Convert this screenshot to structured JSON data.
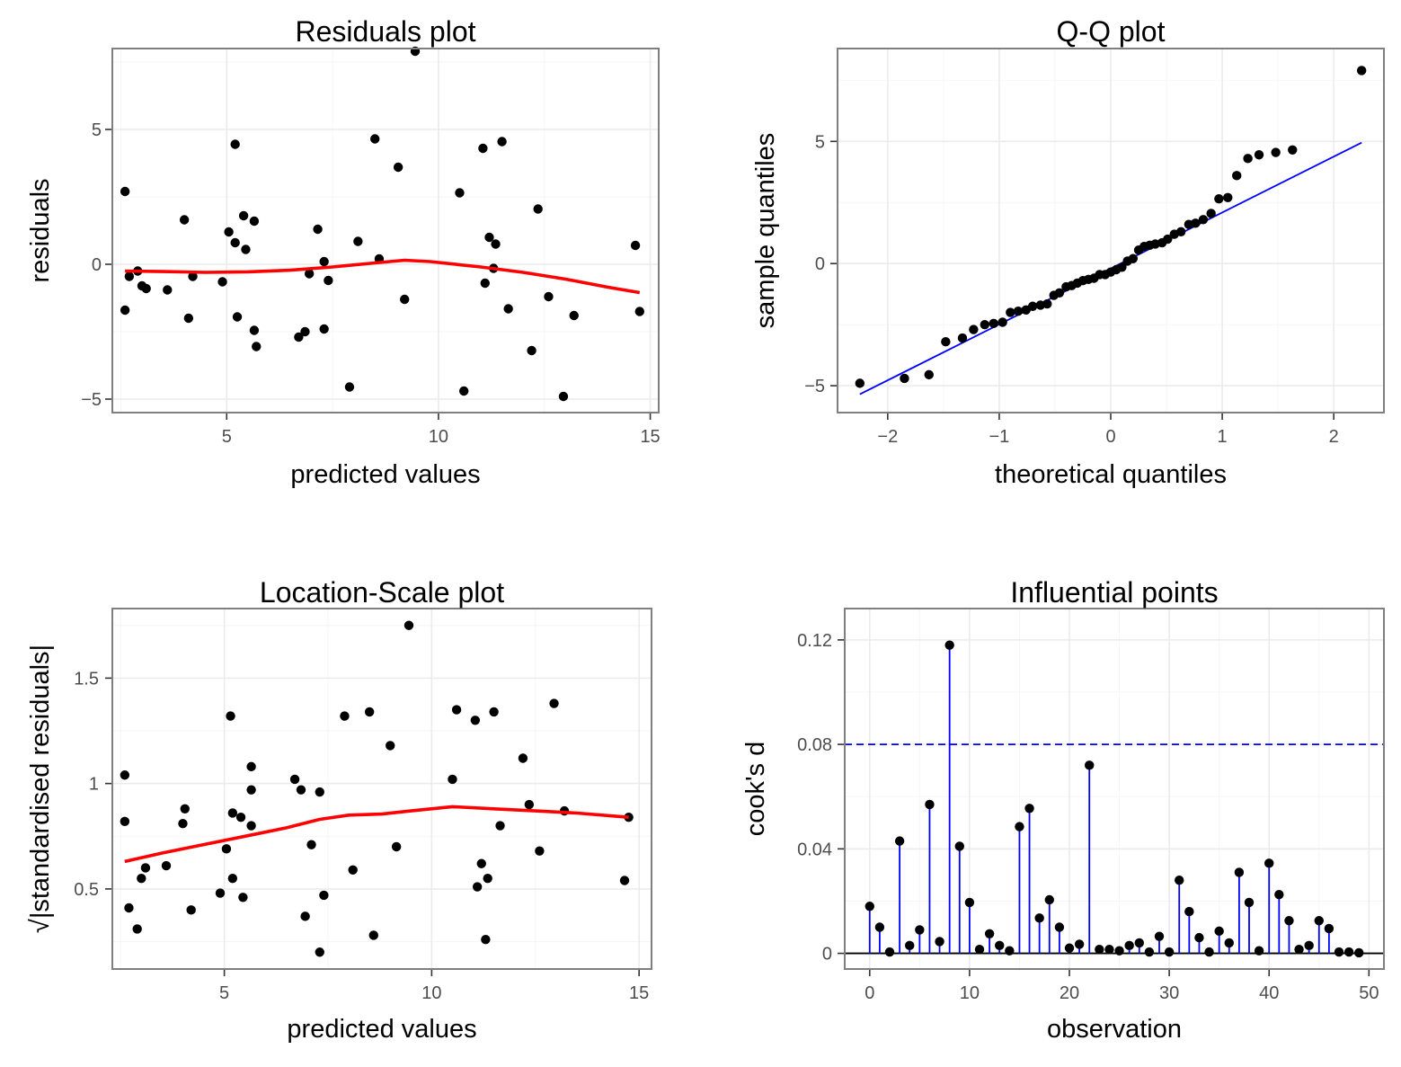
{
  "colors": {
    "points": "#000000",
    "smooth": "#ff0000",
    "reference": "#0000ff",
    "grid": "#ebebeb",
    "frame": "#7f7f7f"
  },
  "chart_data": [
    {
      "id": "residuals",
      "type": "scatter",
      "title": "Residuals plot",
      "xlabel": "predicted values",
      "ylabel": "residuals",
      "xlim": [
        2.3,
        15.2
      ],
      "ylim": [
        -5.5,
        8.0
      ],
      "xticks": [
        5,
        10,
        15
      ],
      "xtick_labels": [
        "5",
        "10",
        "15"
      ],
      "yticks": [
        -5,
        0,
        5
      ],
      "ytick_labels": [
        "−5",
        "0",
        "5"
      ],
      "grid": true,
      "points": [
        [
          2.6,
          -1.7
        ],
        [
          2.6,
          2.7
        ],
        [
          2.7,
          -0.45
        ],
        [
          2.9,
          -0.25
        ],
        [
          3.0,
          -0.8
        ],
        [
          3.1,
          -0.9
        ],
        [
          3.6,
          -0.95
        ],
        [
          4.0,
          1.65
        ],
        [
          4.1,
          -2.0
        ],
        [
          4.2,
          -0.45
        ],
        [
          4.9,
          -0.65
        ],
        [
          5.05,
          1.2
        ],
        [
          5.2,
          4.45
        ],
        [
          5.2,
          0.8
        ],
        [
          5.25,
          -1.95
        ],
        [
          5.4,
          1.8
        ],
        [
          5.45,
          0.55
        ],
        [
          5.65,
          1.6
        ],
        [
          5.65,
          -2.45
        ],
        [
          5.7,
          -3.05
        ],
        [
          6.7,
          -2.7
        ],
        [
          6.85,
          -2.5
        ],
        [
          6.95,
          -0.35
        ],
        [
          7.15,
          1.3
        ],
        [
          7.3,
          0.1
        ],
        [
          7.3,
          -2.4
        ],
        [
          7.4,
          -0.6
        ],
        [
          7.9,
          -4.55
        ],
        [
          8.1,
          0.85
        ],
        [
          8.5,
          4.65
        ],
        [
          8.6,
          0.2
        ],
        [
          9.05,
          3.6
        ],
        [
          9.2,
          -1.3
        ],
        [
          9.45,
          7.9
        ],
        [
          10.5,
          2.65
        ],
        [
          10.6,
          -4.7
        ],
        [
          11.05,
          4.3
        ],
        [
          11.1,
          -0.7
        ],
        [
          11.2,
          1.0
        ],
        [
          11.3,
          -0.15
        ],
        [
          11.35,
          0.75
        ],
        [
          11.5,
          4.55
        ],
        [
          11.65,
          -1.65
        ],
        [
          12.2,
          -3.2
        ],
        [
          12.35,
          2.05
        ],
        [
          12.6,
          -1.2
        ],
        [
          12.95,
          -4.9
        ],
        [
          13.2,
          -1.9
        ],
        [
          14.65,
          0.7
        ],
        [
          14.75,
          -1.75
        ]
      ],
      "smooth": [
        [
          2.6,
          -0.25
        ],
        [
          3.5,
          -0.27
        ],
        [
          4.5,
          -0.3
        ],
        [
          5.5,
          -0.28
        ],
        [
          6.5,
          -0.22
        ],
        [
          7.5,
          -0.1
        ],
        [
          8.5,
          0.05
        ],
        [
          9.2,
          0.15
        ],
        [
          9.8,
          0.1
        ],
        [
          11.0,
          -0.1
        ],
        [
          12.0,
          -0.3
        ],
        [
          13.0,
          -0.55
        ],
        [
          14.0,
          -0.85
        ],
        [
          14.75,
          -1.05
        ]
      ]
    },
    {
      "id": "qq",
      "type": "scatter",
      "title": "Q-Q plot",
      "xlabel": "theoretical quantiles",
      "ylabel": "sample quantiles",
      "xlim": [
        -2.45,
        2.45
      ],
      "ylim": [
        -6.1,
        8.8
      ],
      "xticks": [
        -2,
        -1,
        0,
        1,
        2
      ],
      "xtick_labels": [
        "−2",
        "−1",
        "0",
        "1",
        "2"
      ],
      "yticks": [
        -5,
        0,
        5
      ],
      "ytick_labels": [
        "−5",
        "0",
        "5"
      ],
      "grid": true,
      "points": [
        [
          -2.25,
          -4.9
        ],
        [
          -1.85,
          -4.7
        ],
        [
          -1.63,
          -4.55
        ],
        [
          -1.48,
          -3.2
        ],
        [
          -1.33,
          -3.05
        ],
        [
          -1.23,
          -2.7
        ],
        [
          -1.13,
          -2.5
        ],
        [
          -1.05,
          -2.45
        ],
        [
          -0.97,
          -2.4
        ],
        [
          -0.9,
          -2.0
        ],
        [
          -0.83,
          -1.95
        ],
        [
          -0.76,
          -1.9
        ],
        [
          -0.7,
          -1.75
        ],
        [
          -0.63,
          -1.7
        ],
        [
          -0.57,
          -1.65
        ],
        [
          -0.51,
          -1.3
        ],
        [
          -0.46,
          -1.2
        ],
        [
          -0.4,
          -0.95
        ],
        [
          -0.35,
          -0.9
        ],
        [
          -0.3,
          -0.8
        ],
        [
          -0.25,
          -0.7
        ],
        [
          -0.2,
          -0.65
        ],
        [
          -0.15,
          -0.6
        ],
        [
          -0.1,
          -0.45
        ],
        [
          -0.05,
          -0.45
        ],
        [
          0.0,
          -0.35
        ],
        [
          0.05,
          -0.25
        ],
        [
          0.1,
          -0.15
        ],
        [
          0.15,
          0.1
        ],
        [
          0.2,
          0.2
        ],
        [
          0.25,
          0.55
        ],
        [
          0.3,
          0.7
        ],
        [
          0.35,
          0.75
        ],
        [
          0.4,
          0.8
        ],
        [
          0.46,
          0.85
        ],
        [
          0.51,
          1.0
        ],
        [
          0.57,
          1.2
        ],
        [
          0.63,
          1.3
        ],
        [
          0.7,
          1.6
        ],
        [
          0.76,
          1.65
        ],
        [
          0.83,
          1.8
        ],
        [
          0.9,
          2.05
        ],
        [
          0.97,
          2.65
        ],
        [
          1.05,
          2.7
        ],
        [
          1.13,
          3.6
        ],
        [
          1.23,
          4.3
        ],
        [
          1.33,
          4.45
        ],
        [
          1.48,
          4.55
        ],
        [
          1.63,
          4.65
        ],
        [
          2.25,
          7.9
        ]
      ],
      "reference_line": [
        [
          -2.25,
          -5.35
        ],
        [
          2.25,
          4.95
        ]
      ]
    },
    {
      "id": "location_scale",
      "type": "scatter",
      "title": "Location-Scale plot",
      "xlabel": "predicted values",
      "ylabel": "√|standardised residuals|",
      "xlim": [
        2.3,
        15.3
      ],
      "ylim": [
        0.12,
        1.83
      ],
      "xticks": [
        5,
        10,
        15
      ],
      "xtick_labels": [
        "5",
        "10",
        "15"
      ],
      "yticks": [
        0.5,
        1.0,
        1.5
      ],
      "ytick_labels": [
        "0.5",
        "1",
        "1.5"
      ],
      "grid": true,
      "points": [
        [
          2.6,
          0.82
        ],
        [
          2.6,
          1.04
        ],
        [
          2.7,
          0.41
        ],
        [
          2.9,
          0.31
        ],
        [
          3.0,
          0.55
        ],
        [
          3.1,
          0.6
        ],
        [
          3.6,
          0.61
        ],
        [
          4.0,
          0.81
        ],
        [
          4.05,
          0.88
        ],
        [
          4.2,
          0.4
        ],
        [
          4.9,
          0.48
        ],
        [
          5.05,
          0.69
        ],
        [
          5.15,
          1.32
        ],
        [
          5.2,
          0.86
        ],
        [
          5.2,
          0.55
        ],
        [
          5.4,
          0.84
        ],
        [
          5.45,
          0.46
        ],
        [
          5.65,
          1.08
        ],
        [
          5.65,
          0.97
        ],
        [
          5.65,
          0.8
        ],
        [
          6.7,
          1.02
        ],
        [
          6.85,
          0.97
        ],
        [
          6.95,
          0.37
        ],
        [
          7.1,
          0.71
        ],
        [
          7.3,
          0.2
        ],
        [
          7.3,
          0.96
        ],
        [
          7.4,
          0.47
        ],
        [
          7.9,
          1.32
        ],
        [
          8.1,
          0.59
        ],
        [
          8.5,
          1.34
        ],
        [
          8.6,
          0.28
        ],
        [
          9.0,
          1.18
        ],
        [
          9.15,
          0.7
        ],
        [
          9.45,
          1.75
        ],
        [
          10.5,
          1.02
        ],
        [
          10.6,
          1.35
        ],
        [
          11.05,
          1.3
        ],
        [
          11.1,
          0.51
        ],
        [
          11.2,
          0.62
        ],
        [
          11.3,
          0.26
        ],
        [
          11.35,
          0.55
        ],
        [
          11.5,
          1.34
        ],
        [
          11.65,
          0.8
        ],
        [
          12.2,
          1.12
        ],
        [
          12.35,
          0.9
        ],
        [
          12.6,
          0.68
        ],
        [
          12.95,
          1.38
        ],
        [
          13.2,
          0.87
        ],
        [
          14.65,
          0.54
        ],
        [
          14.75,
          0.84
        ]
      ],
      "smooth": [
        [
          2.6,
          0.63
        ],
        [
          3.5,
          0.67
        ],
        [
          4.5,
          0.71
        ],
        [
          5.5,
          0.75
        ],
        [
          6.5,
          0.79
        ],
        [
          7.3,
          0.83
        ],
        [
          8.0,
          0.85
        ],
        [
          8.8,
          0.855
        ],
        [
          9.5,
          0.87
        ],
        [
          10.5,
          0.89
        ],
        [
          11.5,
          0.88
        ],
        [
          12.5,
          0.87
        ],
        [
          13.5,
          0.86
        ],
        [
          14.75,
          0.84
        ]
      ]
    },
    {
      "id": "influence",
      "type": "scatter",
      "title": "Influential points",
      "xlabel": "observation",
      "ylabel": "cook's d",
      "xlim": [
        -2.5,
        51.5
      ],
      "ylim": [
        -0.006,
        0.132
      ],
      "xticks": [
        0,
        10,
        20,
        30,
        40,
        50
      ],
      "xtick_labels": [
        "0",
        "10",
        "20",
        "30",
        "40",
        "50"
      ],
      "yticks": [
        0,
        0.04,
        0.08,
        0.12
      ],
      "ytick_labels": [
        "0",
        "0.04",
        "0.08",
        "0.12"
      ],
      "grid": true,
      "threshold": 0.08,
      "values": [
        0.018,
        0.01,
        0.0005,
        0.043,
        0.003,
        0.009,
        0.057,
        0.0045,
        0.118,
        0.041,
        0.0195,
        0.0015,
        0.0075,
        0.003,
        0.001,
        0.0485,
        0.0555,
        0.0135,
        0.0205,
        0.01,
        0.002,
        0.0035,
        0.072,
        0.0015,
        0.0015,
        0.001,
        0.003,
        0.004,
        0.0005,
        0.0065,
        0.0005,
        0.028,
        0.016,
        0.006,
        0.0005,
        0.0085,
        0.004,
        0.031,
        0.0195,
        0.001,
        0.0345,
        0.0225,
        0.0125,
        0.0015,
        0.003,
        0.0125,
        0.0095,
        0.0005,
        0.0005,
        0.0002
      ],
      "x_start": 0,
      "x_insert_index_note": ""
    }
  ]
}
